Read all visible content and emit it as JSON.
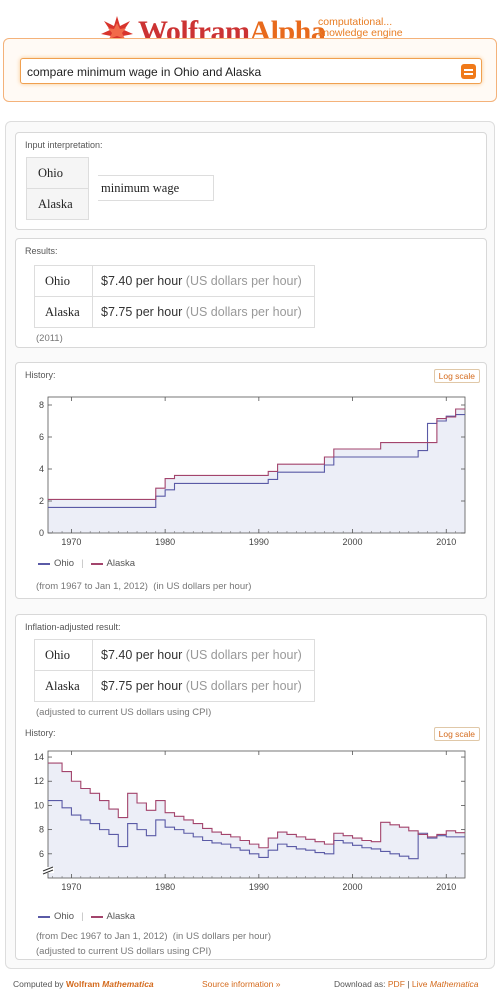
{
  "header": {
    "logo_wolfram": "Wolfram",
    "logo_alpha": "Alpha",
    "tagline_1": "computational...",
    "tagline_2": "knowledge engine"
  },
  "search": {
    "query": "compare minimum wage in Ohio and Alaska",
    "button_icon": "equal-icon"
  },
  "pods": {
    "input": {
      "title": "Input interpretation:",
      "states": [
        "Ohio",
        "Alaska"
      ],
      "measure": "minimum wage"
    },
    "results": {
      "title": "Results:",
      "rows": [
        {
          "state": "Ohio",
          "value": "$7.40 per hour",
          "unit": "(US dollars per hour)"
        },
        {
          "state": "Alaska",
          "value": "$7.75 per hour",
          "unit": "(US dollars per hour)"
        }
      ],
      "year_note": "(2011)"
    },
    "history": {
      "title": "History:",
      "log_scale_label": "Log scale",
      "legend": [
        "Ohio",
        "Alaska"
      ],
      "range_note": "(from 1967 to  Jan 1, 2012)",
      "unit_note": "(in US dollars per hour)"
    },
    "inflation": {
      "title": "Inflation-adjusted result:",
      "rows": [
        {
          "state": "Ohio",
          "value": "$7.40 per hour",
          "unit": "(US dollars per hour)"
        },
        {
          "state": "Alaska",
          "value": "$7.75 per hour",
          "unit": "(US dollars per hour)"
        }
      ],
      "cpi_note": "(adjusted to current US dollars using CPI)",
      "history_title": "History:",
      "log_scale_label": "Log scale",
      "legend": [
        "Ohio",
        "Alaska"
      ],
      "range_note": "(from Dec 1967 to  Jan 1, 2012)",
      "unit_note": "(in US dollars per hour)",
      "cpi_note_2": "(adjusted to current US dollars using CPI)"
    }
  },
  "footer": {
    "computed_by": "Computed by",
    "wolfram": "Wolfram",
    "mathematica": "Mathematica",
    "source_info": "Source information »",
    "download_as": "Download as:",
    "pdf": "PDF",
    "sep": "|",
    "live": "Live",
    "live_mathematica": "Mathematica"
  },
  "colors": {
    "ohio": "#5a5aa6",
    "alaska": "#a3446c",
    "fill": "#eceef7",
    "accent": "#e86a1c"
  },
  "chart_data": [
    {
      "type": "line",
      "title": "",
      "xlim": [
        1967.5,
        2012
      ],
      "ylim": [
        0,
        8.5
      ],
      "xticks": [
        1970,
        1980,
        1990,
        2000,
        2010
      ],
      "yticks": [
        0,
        2,
        4,
        6,
        8
      ],
      "series": [
        {
          "name": "Ohio",
          "x": [
            1967.5,
            1976,
            1979,
            1980,
            1981,
            1991,
            1992,
            1997,
            1998,
            2007,
            2008,
            2009,
            2010,
            2011,
            2012
          ],
          "y": [
            1.6,
            1.6,
            2.3,
            2.7,
            3.1,
            3.35,
            3.8,
            4.25,
            4.75,
            5.15,
            6.85,
            7.0,
            7.3,
            7.4,
            7.4
          ]
        },
        {
          "name": "Alaska",
          "x": [
            1967.5,
            1976,
            1979,
            1980,
            1981,
            1991,
            1992,
            1997,
            1998,
            2003,
            2009,
            2010,
            2011,
            2012
          ],
          "y": [
            2.1,
            2.1,
            2.8,
            3.4,
            3.6,
            3.85,
            4.3,
            4.75,
            5.25,
            5.65,
            7.15,
            7.25,
            7.75,
            7.75
          ]
        }
      ]
    },
    {
      "type": "line",
      "title": "",
      "xlim": [
        1967.5,
        2012
      ],
      "ylim": [
        4,
        14.5
      ],
      "xticks": [
        1970,
        1980,
        1990,
        2000,
        2010
      ],
      "yticks": [
        6,
        8,
        10,
        12,
        14
      ],
      "series": [
        {
          "name": "Ohio",
          "x": [
            1967.5,
            1968,
            1969,
            1970,
            1971,
            1972,
            1973,
            1974,
            1975,
            1976,
            1977,
            1978,
            1979,
            1980,
            1981,
            1982,
            1983,
            1984,
            1985,
            1986,
            1987,
            1988,
            1989,
            1990,
            1991,
            1992,
            1993,
            1994,
            1995,
            1996,
            1997,
            1998,
            1999,
            2000,
            2001,
            2002,
            2003,
            2004,
            2005,
            2006,
            2007,
            2008,
            2009,
            2010,
            2011,
            2012
          ],
          "y": [
            10.4,
            10.4,
            9.8,
            9.2,
            8.8,
            8.5,
            8.0,
            7.6,
            6.6,
            8.5,
            8.0,
            7.5,
            8.8,
            8.2,
            8.0,
            7.7,
            7.4,
            7.1,
            6.9,
            6.8,
            6.5,
            6.3,
            6.0,
            5.7,
            6.3,
            6.8,
            6.6,
            6.4,
            6.3,
            6.1,
            6.0,
            7.1,
            6.9,
            6.7,
            6.5,
            6.4,
            6.2,
            6.0,
            5.8,
            5.6,
            7.7,
            7.3,
            7.5,
            7.4,
            7.4,
            7.4
          ]
        },
        {
          "name": "Alaska",
          "x": [
            1967.5,
            1969,
            1970,
            1971,
            1972,
            1973,
            1974,
            1975,
            1976,
            1977,
            1978,
            1979,
            1980,
            1981,
            1982,
            1983,
            1984,
            1985,
            1986,
            1987,
            1988,
            1989,
            1990,
            1991,
            1992,
            1993,
            1994,
            1995,
            1996,
            1997,
            1998,
            1999,
            2000,
            2001,
            2002,
            2003,
            2004,
            2005,
            2006,
            2007,
            2008,
            2009,
            2010,
            2011,
            2012
          ],
          "y": [
            13.5,
            12.8,
            12.0,
            11.4,
            11.0,
            10.4,
            9.7,
            9.0,
            11.0,
            10.2,
            9.6,
            10.4,
            9.4,
            9.1,
            8.8,
            8.5,
            8.1,
            7.8,
            7.6,
            7.4,
            7.1,
            6.8,
            6.5,
            7.3,
            7.8,
            7.6,
            7.4,
            7.2,
            7.0,
            6.8,
            7.7,
            7.5,
            7.3,
            7.1,
            7.0,
            8.6,
            8.4,
            8.2,
            7.9,
            7.6,
            7.4,
            7.6,
            7.9,
            7.75,
            7.75
          ]
        }
      ]
    }
  ]
}
